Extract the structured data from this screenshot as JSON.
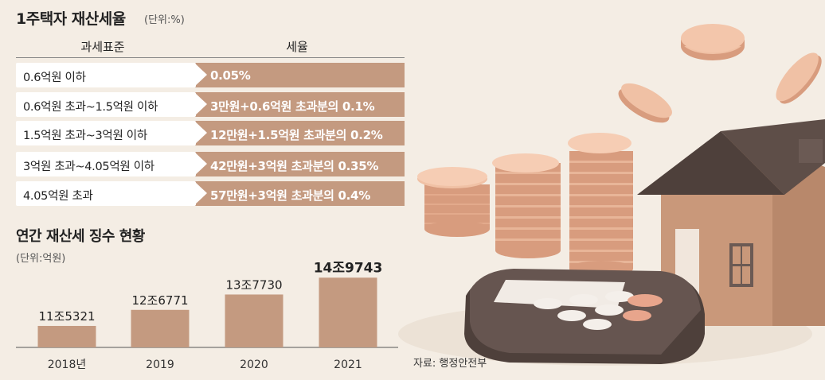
{
  "title": "1주택자 재산세율",
  "title_unit": "(단위:%)",
  "table": {
    "header_left": "과세표준",
    "header_right": "세율",
    "rows": [
      {
        "bracket": "0.6억원 이하",
        "rate": "0.05%"
      },
      {
        "bracket": "0.6억원 초과~1.5억원 이하",
        "rate": "3만원+0.6억원 초과분의 0.1%"
      },
      {
        "bracket": "1.5억원 초과~3억원 이하",
        "rate": "12만원+1.5억원 초과분의 0.2%"
      },
      {
        "bracket": "3억원 초과~4.05억원 이하",
        "rate": "42만원+3억원 초과분의 0.35%"
      },
      {
        "bracket": "4.05억원 초과",
        "rate": "57만원+3억원 초과분의 0.4%"
      }
    ]
  },
  "chart_title": "연간 재산세 징수 현황",
  "chart_unit": "(단위:억원)",
  "chart_data": {
    "type": "bar",
    "title": "연간 재산세 징수 현황",
    "categories": [
      "2018년",
      "2019",
      "2020",
      "2021"
    ],
    "values": [
      115321,
      126771,
      137730,
      149743
    ],
    "value_labels": [
      "11조5321",
      "12조6771",
      "13조7730",
      "14조9743"
    ],
    "ylim": [
      100000,
      155000
    ],
    "colors": {
      "bar": "#c49a80",
      "bar_highlight": "#c49a80"
    }
  },
  "source": "자료: 행정안전부",
  "colors": {
    "background": "#f4ede4",
    "accent": "#c49a80",
    "coin": "#e8b598",
    "house_wall": "#a87a5e",
    "roof": "#5a4a44",
    "calculator": "#5b4a44"
  }
}
